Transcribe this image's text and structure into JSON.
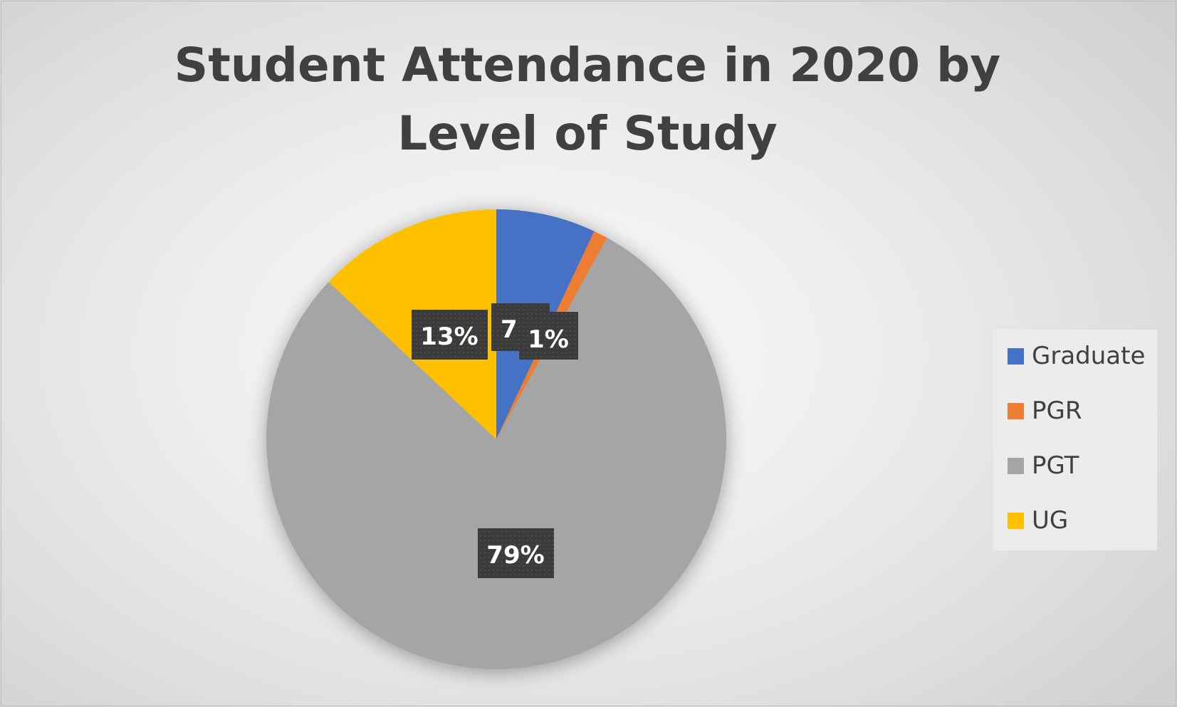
{
  "chart_data": {
    "type": "pie",
    "title": "Student Attendance in 2020 by Level of Study",
    "categories": [
      "Graduate",
      "PGR",
      "PGT",
      "UG"
    ],
    "values": [
      7,
      1,
      79,
      13
    ],
    "value_labels": [
      "7",
      "1%",
      "79%",
      "13%"
    ],
    "colors": [
      "#4472C4",
      "#ED7D31",
      "#A5A5A5",
      "#FFC000"
    ],
    "start_angle_deg": 0,
    "direction": "clockwise",
    "legend_position": "right"
  }
}
